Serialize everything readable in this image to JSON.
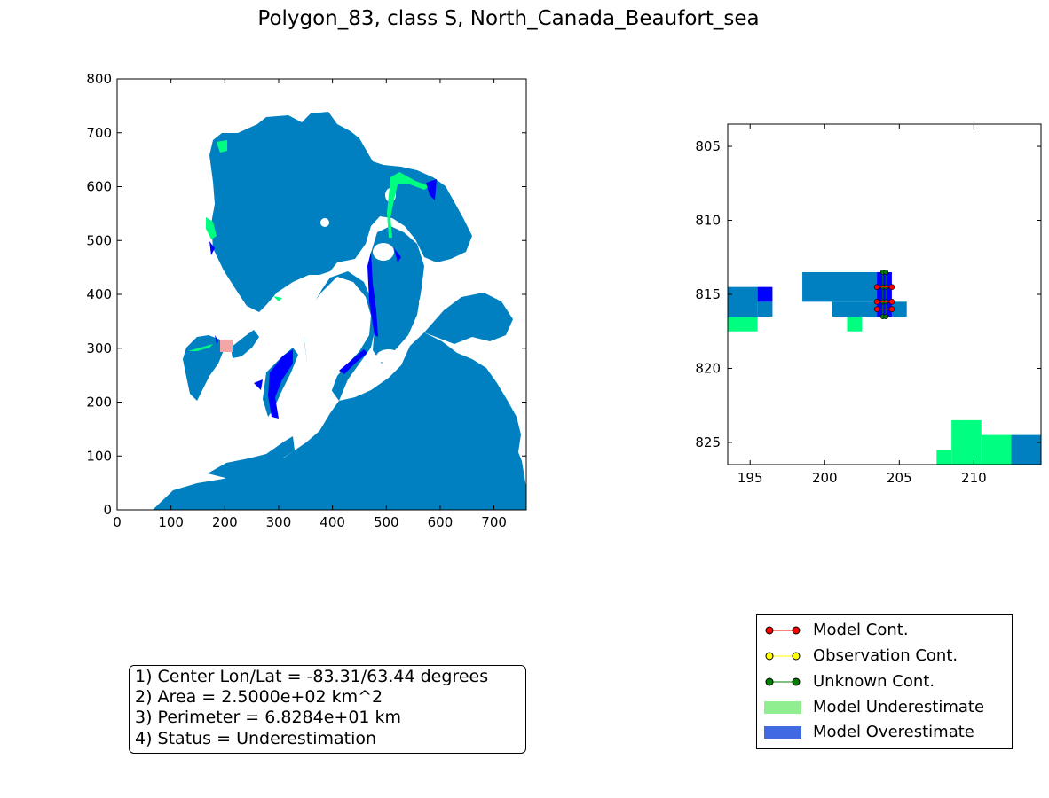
{
  "title": "Polygon_83, class S, North_Canada_Beaufort_sea",
  "colors": {
    "ocean": "#0080c0",
    "underestimate_cell": "#00ff80",
    "overestimate_cell": "#0000ff",
    "land": "#ffffff",
    "polygon_marker": "#f4a6a6",
    "model_cont": "#ff0000",
    "observation_cont": "#ffff00",
    "unknown_cont": "#008000",
    "legend_underestimate": "#90ee90",
    "legend_overestimate": "#4169e1"
  },
  "chart_data": [
    {
      "type": "heatmap",
      "name": "overview-map",
      "xlim": [
        0,
        760
      ],
      "ylim": [
        0,
        800
      ],
      "x_ticks": [
        "0",
        "100",
        "200",
        "300",
        "400",
        "500",
        "600",
        "700"
      ],
      "y_ticks": [
        "0",
        "100",
        "200",
        "300",
        "400",
        "500",
        "600",
        "700",
        "800"
      ],
      "polygon_marker_center": [
        205,
        305
      ],
      "grid": false
    },
    {
      "type": "heatmap",
      "name": "zoom-map",
      "xlim": [
        193.5,
        214.5
      ],
      "ylim": [
        826.5,
        803.5
      ],
      "x_ticks": [
        "195",
        "200",
        "205",
        "210"
      ],
      "y_ticks": [
        "805",
        "810",
        "815",
        "820",
        "825"
      ],
      "grid": false,
      "cells": [
        {
          "x0": 193.5,
          "x1": 195.5,
          "y0": 814.5,
          "y1": 816.5,
          "class": "ocean"
        },
        {
          "x0": 195.5,
          "x1": 196.5,
          "y0": 815.5,
          "y1": 816.5,
          "class": "ocean"
        },
        {
          "x0": 195.5,
          "x1": 196.5,
          "y0": 814.5,
          "y1": 815.5,
          "class": "overestimate"
        },
        {
          "x0": 193.5,
          "x1": 195.5,
          "y0": 816.5,
          "y1": 817.5,
          "class": "underestimate"
        },
        {
          "x0": 198.5,
          "x1": 203.5,
          "y0": 813.5,
          "y1": 815.5,
          "class": "ocean"
        },
        {
          "x0": 200.5,
          "x1": 203.5,
          "y0": 815.5,
          "y1": 816.5,
          "class": "ocean"
        },
        {
          "x0": 204.5,
          "x1": 205.5,
          "y0": 815.5,
          "y1": 816.5,
          "class": "ocean"
        },
        {
          "x0": 201.5,
          "x1": 202.5,
          "y0": 816.5,
          "y1": 817.5,
          "class": "underestimate"
        },
        {
          "x0": 203.5,
          "x1": 204.5,
          "y0": 813.5,
          "y1": 816.5,
          "class": "overestimate"
        },
        {
          "x0": 207.5,
          "x1": 208.5,
          "y0": 825.5,
          "y1": 826.5,
          "class": "underestimate"
        },
        {
          "x0": 208.5,
          "x1": 210.5,
          "y0": 823.5,
          "y1": 826.5,
          "class": "underestimate"
        },
        {
          "x0": 210.5,
          "x1": 212.5,
          "y0": 824.5,
          "y1": 826.5,
          "class": "underestimate"
        },
        {
          "x0": 212.5,
          "x1": 214.5,
          "y0": 824.5,
          "y1": 826.5,
          "class": "ocean"
        }
      ],
      "contours": {
        "model": [
          {
            "x": [
              203.5,
              204.5
            ],
            "y": 814.5
          },
          {
            "x": [
              203.5,
              204.5
            ],
            "y": 815.5
          },
          {
            "x": [
              203.5,
              204.5
            ],
            "y": 816.0
          }
        ],
        "unknown": [
          {
            "x": [
              203.9,
              203.9
            ],
            "y": [
              813.5,
              816.5
            ]
          },
          {
            "x": [
              204.1,
              204.1
            ],
            "y": [
              813.5,
              816.5
            ]
          }
        ]
      }
    }
  ],
  "info": {
    "line1": "1) Center Lon/Lat = -83.31/63.44 degrees",
    "line2": "2) Area = 2.5000e+02 km^2",
    "line3": "3) Perimeter = 6.8284e+01 km",
    "line4": "4) Status = Underestimation"
  },
  "legend": [
    {
      "label": "Model Cont.",
      "kind": "line",
      "color": "model_cont"
    },
    {
      "label": "Observation Cont.",
      "kind": "line",
      "color": "observation_cont"
    },
    {
      "label": "Unknown Cont.",
      "kind": "line",
      "color": "unknown_cont"
    },
    {
      "label": "Model Underestimate",
      "kind": "patch",
      "color": "legend_underestimate"
    },
    {
      "label": "Model Overestimate",
      "kind": "patch",
      "color": "legend_overestimate"
    }
  ]
}
